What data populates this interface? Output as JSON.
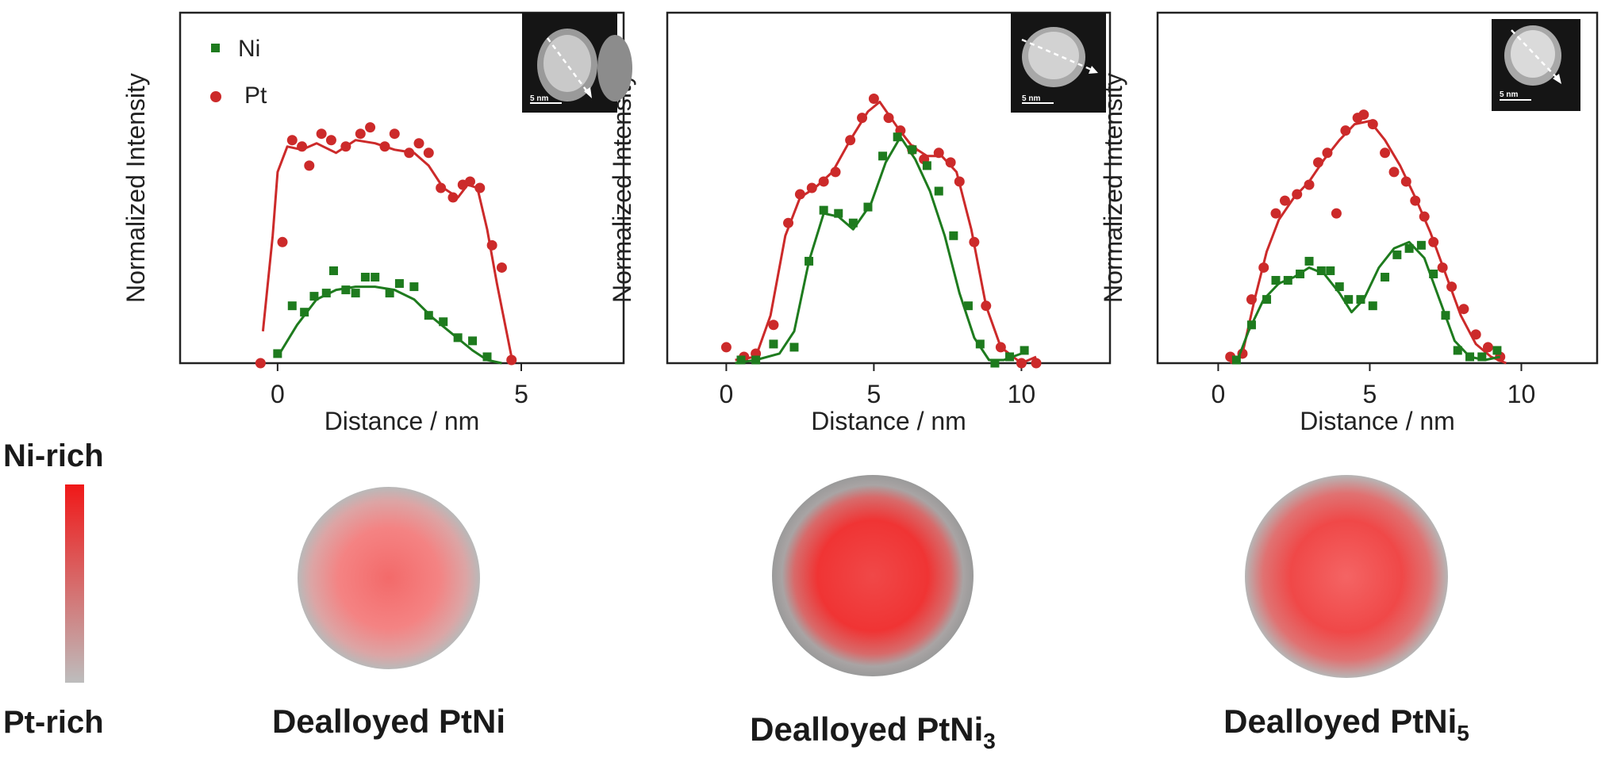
{
  "colors": {
    "ni": "#1e7b1e",
    "pt": "#cc2a2a"
  },
  "legend": {
    "ni": "Ni",
    "pt": "Pt"
  },
  "scale_legend": {
    "top": "Ni-rich",
    "bottom": "Pt-rich"
  },
  "particles": [
    {
      "label_main": "Dealloyed PtNi",
      "label_sub": ""
    },
    {
      "label_main": "Dealloyed PtNi",
      "label_sub": "3"
    },
    {
      "label_main": "Dealloyed PtNi",
      "label_sub": "5"
    }
  ],
  "inset_scale_label": "5 nm",
  "chart_data": [
    {
      "type": "scatter",
      "xlabel": "Distance / nm",
      "ylabel": "Normalized Intensity",
      "xlim": [
        -2,
        7.1
      ],
      "ylim": [
        0,
        1.1
      ],
      "xticks": [
        0,
        5
      ],
      "series": [
        {
          "name": "Pt",
          "points": [
            [
              -0.35,
              0.0
            ],
            [
              0.1,
              0.38
            ],
            [
              0.3,
              0.7
            ],
            [
              0.5,
              0.68
            ],
            [
              0.65,
              0.62
            ],
            [
              0.9,
              0.72
            ],
            [
              1.1,
              0.7
            ],
            [
              1.4,
              0.68
            ],
            [
              1.7,
              0.72
            ],
            [
              1.9,
              0.74
            ],
            [
              2.2,
              0.68
            ],
            [
              2.4,
              0.72
            ],
            [
              2.7,
              0.66
            ],
            [
              2.9,
              0.69
            ],
            [
              3.1,
              0.66
            ],
            [
              3.35,
              0.55
            ],
            [
              3.6,
              0.52
            ],
            [
              3.8,
              0.56
            ],
            [
              3.95,
              0.57
            ],
            [
              4.15,
              0.55
            ],
            [
              4.4,
              0.37
            ],
            [
              4.6,
              0.3
            ],
            [
              4.8,
              0.01
            ]
          ],
          "fit": [
            [
              -0.3,
              0.1
            ],
            [
              -0.1,
              0.4
            ],
            [
              0.0,
              0.6
            ],
            [
              0.2,
              0.68
            ],
            [
              0.5,
              0.67
            ],
            [
              0.8,
              0.69
            ],
            [
              1.2,
              0.66
            ],
            [
              1.6,
              0.7
            ],
            [
              2.0,
              0.69
            ],
            [
              2.4,
              0.67
            ],
            [
              2.8,
              0.66
            ],
            [
              3.1,
              0.62
            ],
            [
              3.4,
              0.55
            ],
            [
              3.7,
              0.52
            ],
            [
              3.9,
              0.56
            ],
            [
              4.1,
              0.55
            ],
            [
              4.3,
              0.42
            ],
            [
              4.5,
              0.25
            ],
            [
              4.8,
              0.02
            ]
          ]
        },
        {
          "name": "Ni",
          "points": [
            [
              0.0,
              0.03
            ],
            [
              0.3,
              0.18
            ],
            [
              0.55,
              0.16
            ],
            [
              0.75,
              0.21
            ],
            [
              1.0,
              0.22
            ],
            [
              1.15,
              0.29
            ],
            [
              1.4,
              0.23
            ],
            [
              1.6,
              0.22
            ],
            [
              1.8,
              0.27
            ],
            [
              2.0,
              0.27
            ],
            [
              2.3,
              0.22
            ],
            [
              2.5,
              0.25
            ],
            [
              2.8,
              0.24
            ],
            [
              3.1,
              0.15
            ],
            [
              3.4,
              0.13
            ],
            [
              3.7,
              0.08
            ],
            [
              4.0,
              0.07
            ],
            [
              4.3,
              0.02
            ]
          ],
          "fit": [
            [
              0.0,
              0.02
            ],
            [
              0.4,
              0.12
            ],
            [
              0.8,
              0.2
            ],
            [
              1.2,
              0.23
            ],
            [
              1.6,
              0.24
            ],
            [
              2.0,
              0.24
            ],
            [
              2.4,
              0.23
            ],
            [
              2.8,
              0.2
            ],
            [
              3.2,
              0.14
            ],
            [
              3.6,
              0.09
            ],
            [
              4.0,
              0.04
            ],
            [
              4.3,
              0.01
            ],
            [
              4.6,
              0.0
            ]
          ]
        }
      ]
    },
    {
      "type": "scatter",
      "xlabel": "Distance / nm",
      "ylabel": "Normalized Intensity",
      "xlim": [
        -2,
        13
      ],
      "ylim": [
        0,
        1.1
      ],
      "xticks": [
        0,
        5,
        10
      ],
      "series": [
        {
          "name": "Pt",
          "points": [
            [
              0.0,
              0.05
            ],
            [
              0.6,
              0.02
            ],
            [
              1.0,
              0.03
            ],
            [
              1.6,
              0.12
            ],
            [
              2.1,
              0.44
            ],
            [
              2.5,
              0.53
            ],
            [
              2.9,
              0.55
            ],
            [
              3.3,
              0.57
            ],
            [
              3.7,
              0.6
            ],
            [
              4.2,
              0.7
            ],
            [
              4.6,
              0.77
            ],
            [
              5.0,
              0.83
            ],
            [
              5.5,
              0.77
            ],
            [
              5.9,
              0.73
            ],
            [
              6.3,
              0.67
            ],
            [
              6.7,
              0.64
            ],
            [
              7.2,
              0.66
            ],
            [
              7.6,
              0.63
            ],
            [
              7.9,
              0.57
            ],
            [
              8.4,
              0.38
            ],
            [
              8.8,
              0.18
            ],
            [
              9.3,
              0.05
            ],
            [
              10.0,
              0.0
            ],
            [
              10.5,
              0.0
            ]
          ],
          "fit": [
            [
              0.3,
              0.01
            ],
            [
              1.0,
              0.02
            ],
            [
              1.5,
              0.15
            ],
            [
              2.0,
              0.4
            ],
            [
              2.5,
              0.52
            ],
            [
              3.0,
              0.55
            ],
            [
              3.6,
              0.6
            ],
            [
              4.2,
              0.7
            ],
            [
              4.8,
              0.79
            ],
            [
              5.2,
              0.82
            ],
            [
              5.8,
              0.74
            ],
            [
              6.3,
              0.68
            ],
            [
              6.8,
              0.65
            ],
            [
              7.3,
              0.65
            ],
            [
              7.8,
              0.6
            ],
            [
              8.3,
              0.42
            ],
            [
              8.8,
              0.18
            ],
            [
              9.3,
              0.05
            ],
            [
              10.0,
              0.0
            ],
            [
              10.5,
              0.02
            ]
          ]
        },
        {
          "name": "Ni",
          "points": [
            [
              0.5,
              0.01
            ],
            [
              1.0,
              0.01
            ],
            [
              1.6,
              0.06
            ],
            [
              2.3,
              0.05
            ],
            [
              2.8,
              0.32
            ],
            [
              3.3,
              0.48
            ],
            [
              3.8,
              0.47
            ],
            [
              4.3,
              0.44
            ],
            [
              4.8,
              0.49
            ],
            [
              5.3,
              0.65
            ],
            [
              5.8,
              0.71
            ],
            [
              6.3,
              0.67
            ],
            [
              6.8,
              0.62
            ],
            [
              7.2,
              0.54
            ],
            [
              7.7,
              0.4
            ],
            [
              8.2,
              0.18
            ],
            [
              8.6,
              0.06
            ],
            [
              9.1,
              0.0
            ],
            [
              9.6,
              0.02
            ],
            [
              10.1,
              0.04
            ]
          ],
          "fit": [
            [
              0.3,
              0.0
            ],
            [
              1.0,
              0.01
            ],
            [
              1.8,
              0.03
            ],
            [
              2.3,
              0.1
            ],
            [
              2.8,
              0.32
            ],
            [
              3.3,
              0.47
            ],
            [
              3.8,
              0.46
            ],
            [
              4.3,
              0.42
            ],
            [
              4.9,
              0.5
            ],
            [
              5.4,
              0.63
            ],
            [
              5.9,
              0.71
            ],
            [
              6.4,
              0.64
            ],
            [
              6.9,
              0.54
            ],
            [
              7.4,
              0.4
            ],
            [
              7.9,
              0.22
            ],
            [
              8.4,
              0.08
            ],
            [
              8.9,
              0.01
            ],
            [
              9.4,
              0.01
            ],
            [
              10.0,
              0.03
            ]
          ]
        }
      ]
    },
    {
      "type": "scatter",
      "xlabel": "Distance / nm",
      "ylabel": "Normalized Intensity",
      "xlim": [
        -2,
        12.5
      ],
      "ylim": [
        0,
        1.1
      ],
      "xticks": [
        0,
        5,
        10
      ],
      "series": [
        {
          "name": "Pt",
          "points": [
            [
              0.4,
              0.02
            ],
            [
              0.8,
              0.03
            ],
            [
              1.1,
              0.2
            ],
            [
              1.5,
              0.3
            ],
            [
              1.9,
              0.47
            ],
            [
              2.2,
              0.51
            ],
            [
              2.6,
              0.53
            ],
            [
              3.0,
              0.56
            ],
            [
              3.3,
              0.63
            ],
            [
              3.6,
              0.66
            ],
            [
              3.9,
              0.47
            ],
            [
              4.2,
              0.73
            ],
            [
              4.6,
              0.77
            ],
            [
              4.8,
              0.78
            ],
            [
              5.1,
              0.75
            ],
            [
              5.5,
              0.66
            ],
            [
              5.8,
              0.6
            ],
            [
              6.2,
              0.57
            ],
            [
              6.5,
              0.51
            ],
            [
              6.8,
              0.46
            ],
            [
              7.1,
              0.38
            ],
            [
              7.4,
              0.3
            ],
            [
              7.7,
              0.24
            ],
            [
              8.1,
              0.17
            ],
            [
              8.5,
              0.09
            ],
            [
              8.9,
              0.05
            ],
            [
              9.3,
              0.02
            ]
          ],
          "fit": [
            [
              0.4,
              0.0
            ],
            [
              0.8,
              0.03
            ],
            [
              1.2,
              0.2
            ],
            [
              1.6,
              0.35
            ],
            [
              2.0,
              0.45
            ],
            [
              2.5,
              0.52
            ],
            [
              3.0,
              0.57
            ],
            [
              3.5,
              0.64
            ],
            [
              4.0,
              0.7
            ],
            [
              4.5,
              0.75
            ],
            [
              5.0,
              0.76
            ],
            [
              5.5,
              0.7
            ],
            [
              6.0,
              0.62
            ],
            [
              6.5,
              0.52
            ],
            [
              7.0,
              0.41
            ],
            [
              7.5,
              0.28
            ],
            [
              8.0,
              0.15
            ],
            [
              8.5,
              0.06
            ],
            [
              9.0,
              0.02
            ],
            [
              9.5,
              0.0
            ]
          ]
        },
        {
          "name": "Ni",
          "points": [
            [
              0.6,
              0.01
            ],
            [
              1.1,
              0.12
            ],
            [
              1.6,
              0.2
            ],
            [
              1.9,
              0.26
            ],
            [
              2.3,
              0.26
            ],
            [
              2.7,
              0.28
            ],
            [
              3.0,
              0.32
            ],
            [
              3.4,
              0.29
            ],
            [
              3.7,
              0.29
            ],
            [
              4.0,
              0.24
            ],
            [
              4.3,
              0.2
            ],
            [
              4.7,
              0.2
            ],
            [
              5.1,
              0.18
            ],
            [
              5.5,
              0.27
            ],
            [
              5.9,
              0.34
            ],
            [
              6.3,
              0.36
            ],
            [
              6.7,
              0.37
            ],
            [
              7.1,
              0.28
            ],
            [
              7.5,
              0.15
            ],
            [
              7.9,
              0.04
            ],
            [
              8.3,
              0.02
            ],
            [
              8.7,
              0.02
            ],
            [
              9.2,
              0.04
            ]
          ],
          "fit": [
            [
              0.6,
              0.0
            ],
            [
              1.0,
              0.1
            ],
            [
              1.5,
              0.2
            ],
            [
              2.0,
              0.25
            ],
            [
              2.5,
              0.27
            ],
            [
              3.0,
              0.3
            ],
            [
              3.5,
              0.28
            ],
            [
              4.0,
              0.22
            ],
            [
              4.4,
              0.16
            ],
            [
              4.8,
              0.2
            ],
            [
              5.3,
              0.3
            ],
            [
              5.8,
              0.36
            ],
            [
              6.3,
              0.38
            ],
            [
              6.8,
              0.33
            ],
            [
              7.3,
              0.2
            ],
            [
              7.8,
              0.07
            ],
            [
              8.3,
              0.02
            ],
            [
              8.8,
              0.01
            ],
            [
              9.3,
              0.02
            ]
          ]
        }
      ]
    }
  ]
}
